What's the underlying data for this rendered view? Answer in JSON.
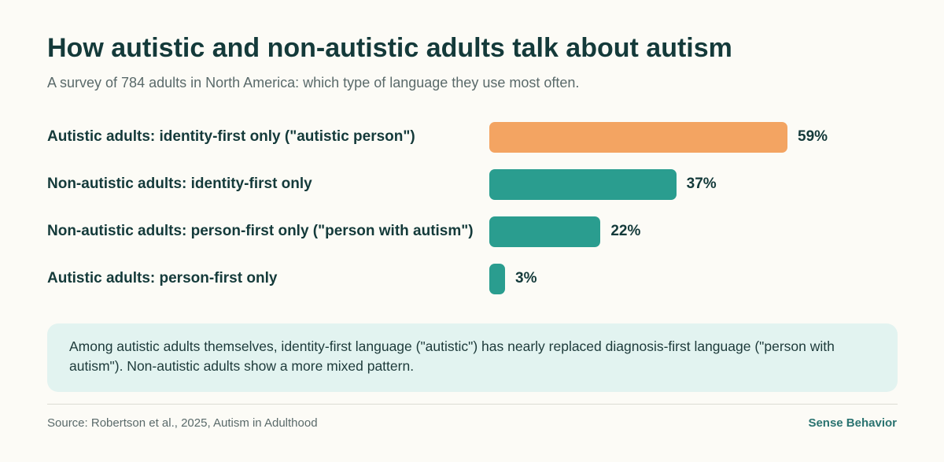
{
  "title": "How autistic and non-autistic adults talk about autism",
  "subtitle": "A survey of 784 adults in North America: which type of language they use most often.",
  "colors": {
    "highlight": "#f3a462",
    "default": "#2a9d8f"
  },
  "chart_data": {
    "type": "bar",
    "orientation": "horizontal",
    "categories": [
      "Autistic adults: identity-first only (\"autistic person\")",
      "Non-autistic adults: identity-first only",
      "Non-autistic adults: person-first only (\"person with autism\")",
      "Autistic adults: person-first only"
    ],
    "values": [
      59,
      37,
      22,
      3
    ],
    "value_labels": [
      "59%",
      "37%",
      "22%",
      "3%"
    ],
    "unit": "%",
    "xlim": [
      0,
      100
    ],
    "highlighted_index": 0,
    "grid": false,
    "legend": "none"
  },
  "note": "Among autistic adults themselves, identity-first language (\"autistic\") has nearly replaced diagnosis-first language (\"person with autism\"). Non-autistic adults show a more mixed pattern.",
  "footer": {
    "source": "Source: Robertson et al., 2025, Autism in Adulthood",
    "brand": "Sense Behavior"
  }
}
